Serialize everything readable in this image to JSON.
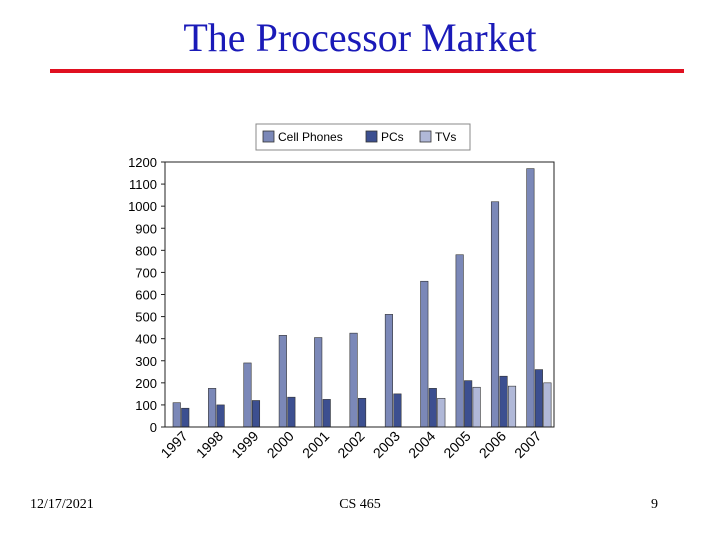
{
  "slide": {
    "title": "The Processor Market",
    "footer_date": "12/17/2021",
    "footer_course": "CS 465",
    "footer_page": "9",
    "rule_color": "#e01020",
    "title_color": "#1a1ab8"
  },
  "chart_data": {
    "type": "bar",
    "title": "",
    "xlabel": "",
    "ylabel": "",
    "ylim": [
      0,
      1200
    ],
    "yticks": [
      "0",
      "100",
      "200",
      "300",
      "400",
      "500",
      "600",
      "700",
      "800",
      "900",
      "1000",
      "1100",
      "1200"
    ],
    "categories": [
      "1997",
      "1998",
      "1999",
      "2000",
      "2001",
      "2002",
      "2003",
      "2004",
      "2005",
      "2006",
      "2007"
    ],
    "series": [
      {
        "name": "Cell Phones",
        "color": "#7b88b8",
        "values": [
          110,
          175,
          290,
          415,
          405,
          425,
          510,
          660,
          780,
          1020,
          1170
        ]
      },
      {
        "name": "PCs",
        "color": "#3c4f90",
        "values": [
          85,
          100,
          120,
          135,
          125,
          130,
          150,
          175,
          210,
          230,
          260
        ]
      },
      {
        "name": "TVs",
        "color": "#b0b8d8",
        "values": [
          0,
          0,
          0,
          0,
          0,
          0,
          0,
          130,
          180,
          185,
          200
        ]
      }
    ],
    "legend_position": "top",
    "grid": false
  }
}
